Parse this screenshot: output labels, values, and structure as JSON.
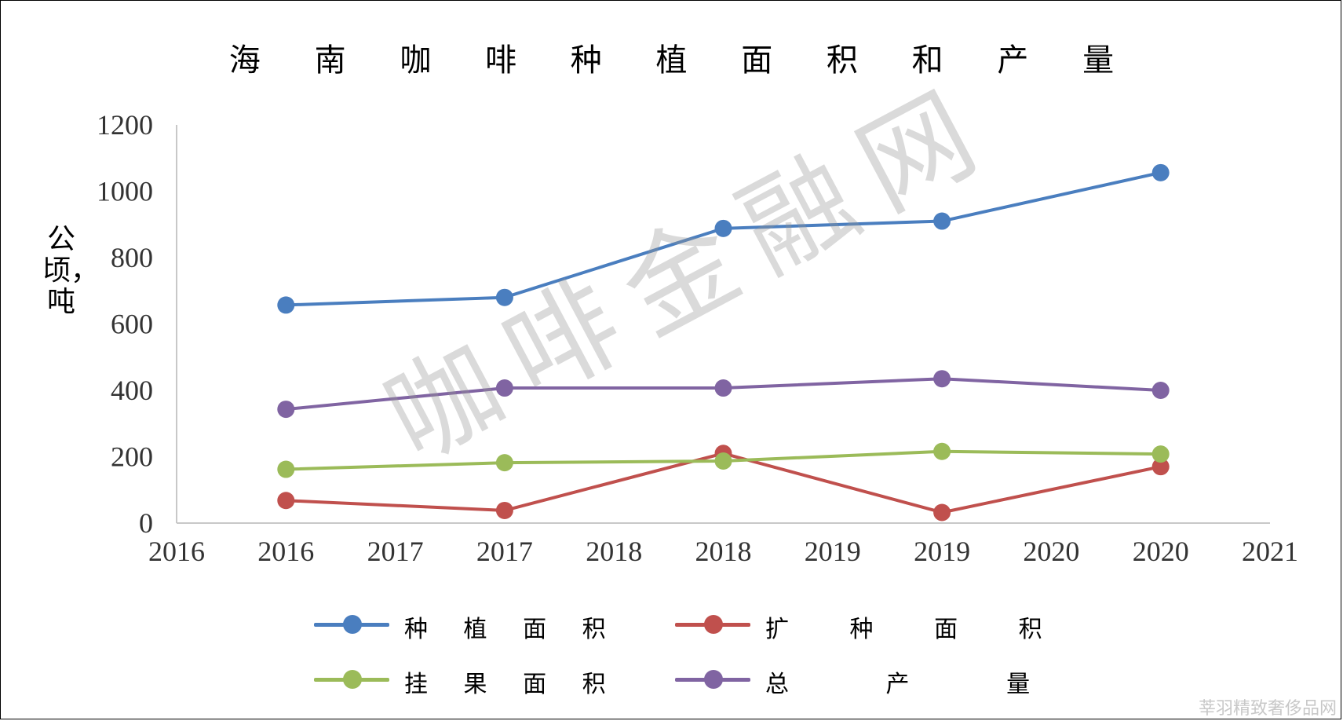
{
  "title": "海 南 咖 啡 种 植 面 积 和 产 量",
  "ylabel": "公顷，吨",
  "watermark": "咖啡金融网",
  "footer_mark": "莘羽精致奢侈品网",
  "colors": {
    "planted_area": "#4a7ebf",
    "expansion_area": "#c0504d",
    "fruiting_area": "#9bbb59",
    "total_output": "#8064a2"
  },
  "chart_data": {
    "type": "line",
    "x_tick_labels": [
      "2016",
      "2016",
      "2017",
      "2017",
      "2018",
      "2018",
      "2019",
      "2019",
      "2020",
      "2020",
      "2021"
    ],
    "x": [
      2016,
      2017,
      2018,
      2019,
      2020
    ],
    "ylim": [
      0,
      1200
    ],
    "yticks": [
      0,
      200,
      400,
      600,
      800,
      1000,
      1200
    ],
    "grid": false,
    "legend_position": "bottom",
    "series": [
      {
        "name": "种 植 面 积",
        "color_key": "planted_area",
        "values": [
          657,
          680,
          888,
          910,
          1056
        ]
      },
      {
        "name": "扩 种 面 积",
        "color_key": "expansion_area",
        "values": [
          68,
          38,
          210,
          32,
          170
        ]
      },
      {
        "name": "挂 果 面 积",
        "color_key": "fruiting_area",
        "values": [
          162,
          182,
          187,
          216,
          208
        ]
      },
      {
        "name": "总 产 量",
        "color_key": "total_output",
        "values": [
          343,
          407,
          407,
          435,
          400
        ]
      }
    ]
  }
}
